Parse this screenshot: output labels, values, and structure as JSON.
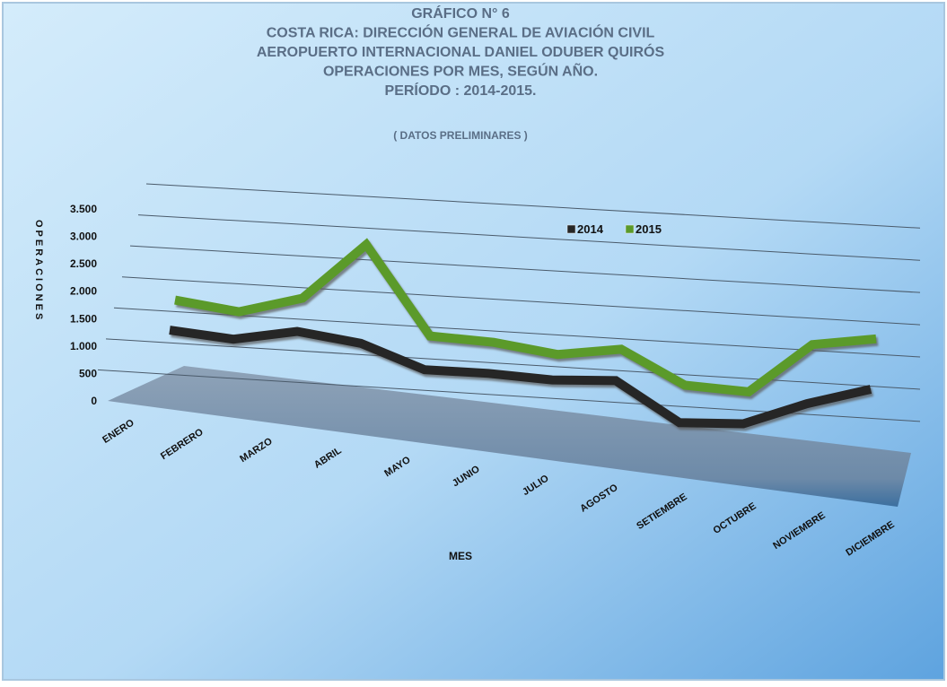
{
  "chart_data": {
    "type": "line",
    "title": [
      "GRÁFICO N° 6",
      "COSTA RICA: DIRECCIÓN GENERAL DE AVIACIÓN CIVIL",
      "AEROPUERTO INTERNACIONAL DANIEL ODUBER QUIRÓS",
      "OPERACIONES POR MES, SEGÚN AÑO.",
      "PERÍODO : 2014-2015."
    ],
    "subtitle": "( DATOS PRELIMINARES )",
    "x_label": "MES",
    "y_label": "OPERACIONES",
    "categories": [
      "ENERO",
      "FEBRERO",
      "MARZO",
      "ABRIL",
      "MAYO",
      "JUNIO",
      "JULIO",
      "AGOSTO",
      "SETIEMBRE",
      "OCTUBRE",
      "NOVIEMBRE",
      "DICIEMBRE"
    ],
    "series": [
      {
        "name": "2014",
        "color": "#262626",
        "values": [
          1450,
          1350,
          1550,
          1400,
          1000,
          1000,
          950,
          1000,
          350,
          400,
          800,
          1100
        ]
      },
      {
        "name": "2015",
        "color": "#5b9a2a",
        "values": [
          1900,
          1750,
          2050,
          3050,
          1500,
          1450,
          1300,
          1450,
          900,
          850,
          1700,
          1850
        ]
      }
    ],
    "ylim": [
      0,
      3500
    ],
    "yticks": [
      0,
      500,
      {
        "value": 1000,
        "label": "1.000"
      },
      {
        "value": 1500,
        "label": "1.500"
      },
      {
        "value": 2000,
        "label": "2.000"
      },
      {
        "value": 2500,
        "label": "2.500"
      },
      {
        "value": 3000,
        "label": "3.000"
      },
      {
        "value": 3500,
        "label": "3.500"
      }
    ],
    "grid": true,
    "legend": "top-right"
  }
}
